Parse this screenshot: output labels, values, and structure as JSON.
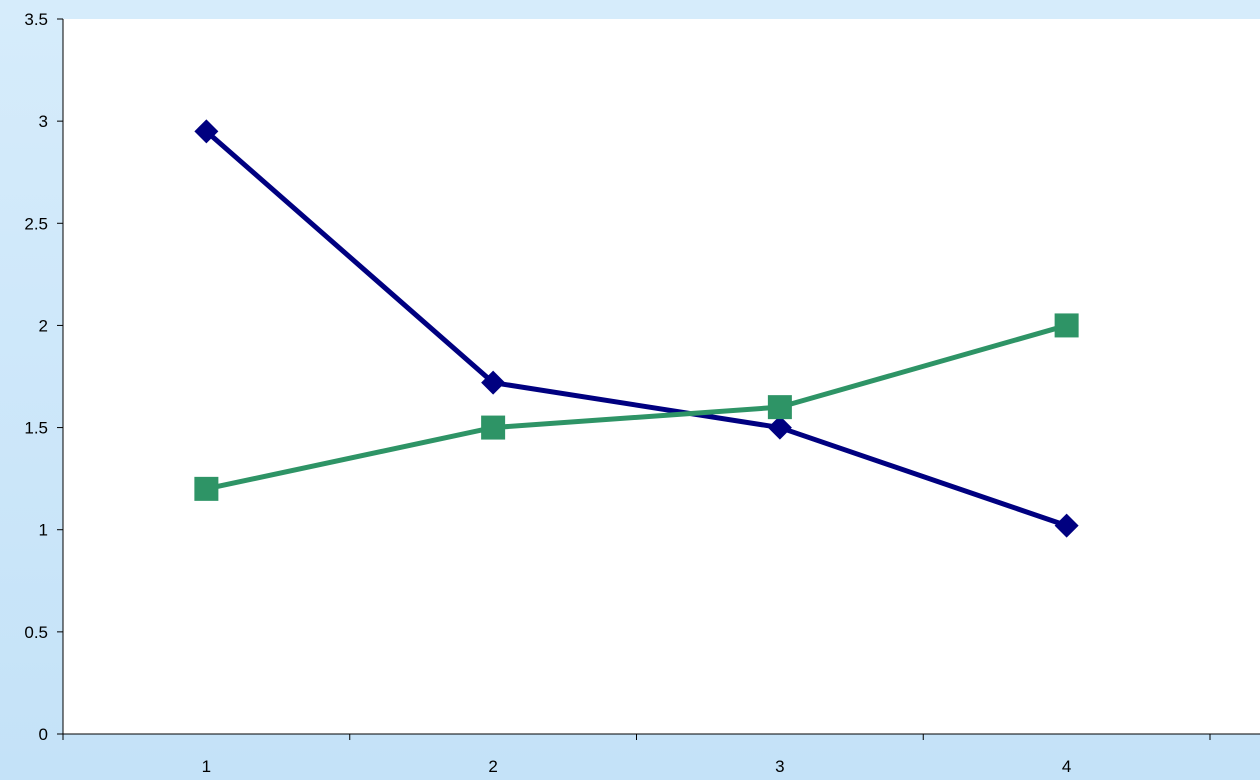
{
  "colors": {
    "background": "#cde6f9",
    "plot_area": "#ffffff",
    "axis": "#000000"
  },
  "chart_data": {
    "type": "line",
    "x": [
      "1",
      "2",
      "3",
      "4"
    ],
    "series": [
      {
        "values": [
          2.95,
          1.72,
          1.5,
          1.02
        ],
        "color": "#000080",
        "marker": "diamond"
      },
      {
        "values": [
          1.2,
          1.5,
          1.6,
          2.0
        ],
        "color": "#2e9466",
        "marker": "square"
      }
    ],
    "ylim": [
      0,
      3.5
    ],
    "yticks": [
      "0",
      "0.5",
      "1",
      "1.5",
      "2",
      "2.5",
      "3",
      "3.5"
    ],
    "grid": false,
    "legend": "none"
  }
}
